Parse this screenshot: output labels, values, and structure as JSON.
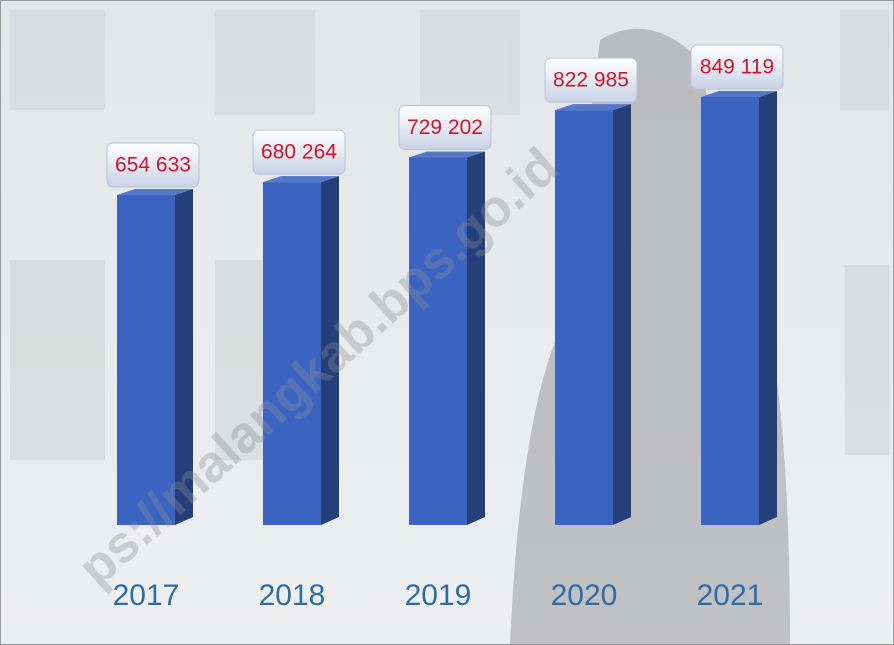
{
  "chart_data": {
    "type": "bar3d",
    "categories": [
      "2017",
      "2018",
      "2019",
      "2020",
      "2021"
    ],
    "values": [
      654633,
      680264,
      729202,
      822985,
      849119
    ],
    "value_labels": [
      "654 633",
      "680 264",
      "729 202",
      "822 985",
      "849 119"
    ],
    "color": "#3b63c2",
    "label_color": "#d0142c",
    "category_color": "#2e6da4",
    "watermark": "ps://malangkab.bps.go.id"
  }
}
